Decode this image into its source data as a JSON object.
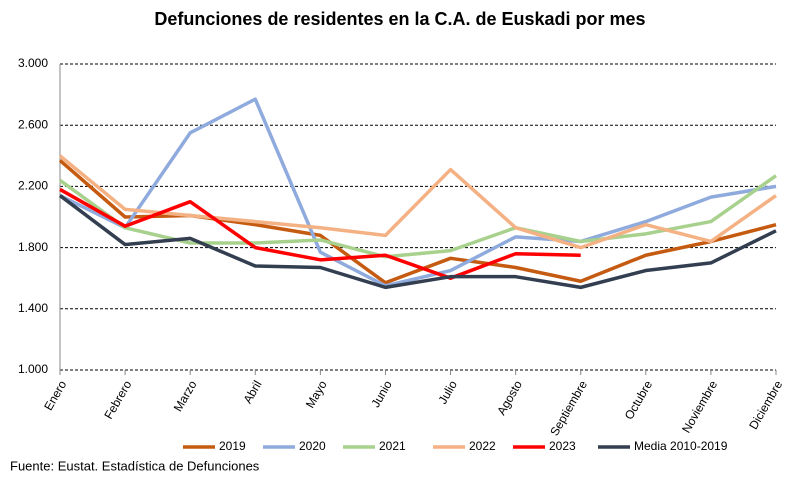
{
  "chart_data": {
    "type": "line",
    "title": "Defunciones de residentes en la C.A. de Euskadi por mes",
    "source": "Fuente: Eustat. Estadística de Defunciones",
    "categories": [
      "Enero",
      "Febrero",
      "Marzo",
      "Abril",
      "Mayo",
      "Junio",
      "Julio",
      "Agosto",
      "Septiembre",
      "Octubre",
      "Noviembre",
      "Diciembre"
    ],
    "series": [
      {
        "name": "2019",
        "color": "#c55a11",
        "values": [
          2370,
          2000,
          2010,
          1950,
          1880,
          1570,
          1730,
          1670,
          1580,
          1750,
          1840,
          1950
        ]
      },
      {
        "name": "2020",
        "color": "#8faadc",
        "values": [
          2140,
          1930,
          2550,
          2770,
          1770,
          1550,
          1650,
          1870,
          1840,
          1970,
          2130,
          2200
        ]
      },
      {
        "name": "2021",
        "color": "#a9d18e",
        "values": [
          2240,
          1930,
          1830,
          1830,
          1850,
          1740,
          1780,
          1930,
          1840,
          1890,
          1970,
          2270
        ]
      },
      {
        "name": "2022",
        "color": "#f4b183",
        "values": [
          2400,
          2050,
          2010,
          1970,
          1930,
          1880,
          2310,
          1930,
          1800,
          1950,
          1840,
          2140
        ]
      },
      {
        "name": "2023",
        "color": "#ff0000",
        "values": [
          2180,
          1940,
          2100,
          1800,
          1720,
          1750,
          1600,
          1760,
          1750,
          null,
          null,
          null
        ]
      },
      {
        "name": "Media 2010-2019",
        "color": "#333f50",
        "values": [
          2140,
          1820,
          1860,
          1680,
          1670,
          1540,
          1610,
          1610,
          1540,
          1650,
          1700,
          1910
        ]
      }
    ],
    "ylim": [
      1000,
      3000
    ],
    "yticks": [
      {
        "value": 1000,
        "label": "1.000"
      },
      {
        "value": 1400,
        "label": "1.400"
      },
      {
        "value": 1800,
        "label": "1.800"
      },
      {
        "value": 2200,
        "label": "2.200"
      },
      {
        "value": 2600,
        "label": "2.600"
      },
      {
        "value": 3000,
        "label": "3.000"
      }
    ],
    "grid": true
  }
}
